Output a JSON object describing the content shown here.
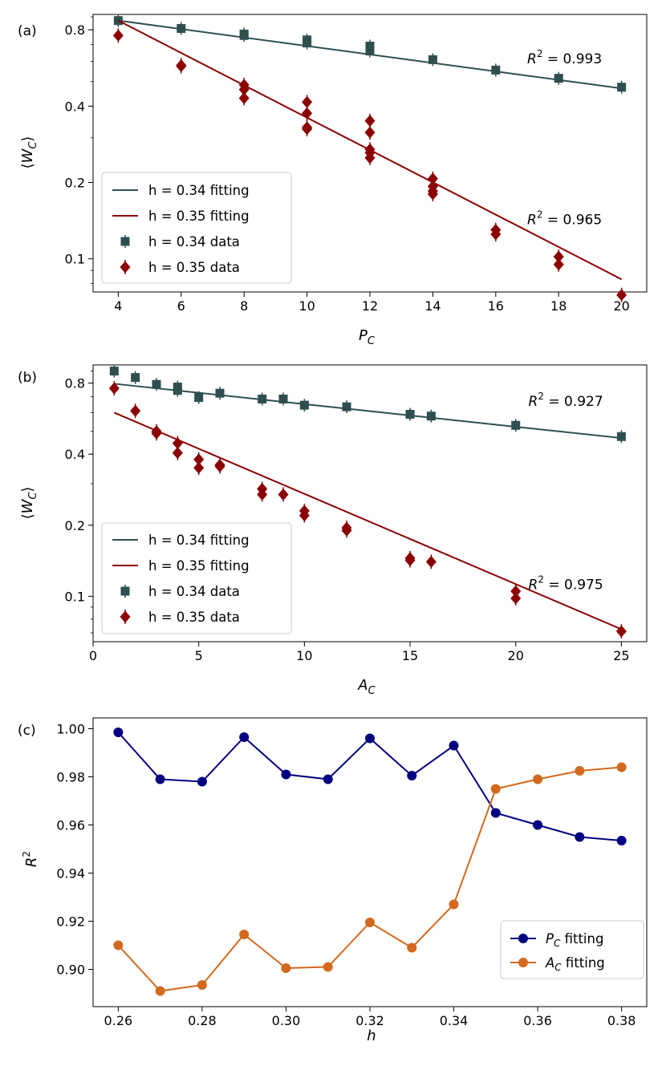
{
  "colors": {
    "h034": "#2f4f4f",
    "h035": "#8b0000",
    "pc_fit": "#000080",
    "ac_fit": "#d2691e"
  },
  "chart_data": [
    {
      "type": "scatter",
      "panel": "(a)",
      "yscale": "log",
      "xlabel_base": "P",
      "xlabel_sub": "C",
      "ylabel_inner": "W",
      "ylabel_sub": "C",
      "xlim": [
        3.2,
        20.8
      ],
      "ylim": [
        0.074,
        0.92
      ],
      "xticks": [
        4,
        6,
        8,
        10,
        12,
        14,
        16,
        18,
        20
      ],
      "yticks": [
        0.1,
        0.2,
        0.4,
        0.8
      ],
      "ytick_labels": [
        "0.1",
        "0.2",
        "0.4",
        "0.8"
      ],
      "legend_position": "lower-left",
      "annotations": [
        {
          "text": "R² = 0.993",
          "series": "h = 0.34",
          "x": 17,
          "y": 0.59
        },
        {
          "text": "R² = 0.965",
          "series": "h = 0.35",
          "x": 17,
          "y": 0.137
        }
      ],
      "series": [
        {
          "name": "h = 0.34",
          "fit_label": "h = 0.34 fitting",
          "data_label": "h = 0.34 data",
          "marker": "square",
          "fit": {
            "x": [
              4,
              20
            ],
            "y": [
              0.87,
              0.47
            ]
          },
          "x": [
            4,
            6,
            8,
            8,
            10,
            10,
            12,
            12,
            14,
            16,
            18,
            20
          ],
          "y": [
            0.87,
            0.81,
            0.77,
            0.76,
            0.73,
            0.71,
            0.69,
            0.66,
            0.61,
            0.555,
            0.515,
            0.475
          ]
        },
        {
          "name": "h = 0.35",
          "fit_label": "h = 0.35 fitting",
          "data_label": "h = 0.35 data",
          "marker": "diamond",
          "fit": {
            "x": [
              4,
              20
            ],
            "y": [
              0.87,
              0.083
            ]
          },
          "x": [
            4,
            6,
            6,
            8,
            8,
            8,
            10,
            10,
            10,
            10,
            12,
            12,
            12,
            12,
            12,
            14,
            14,
            14,
            14,
            16,
            16,
            18,
            18,
            20
          ],
          "y": [
            0.76,
            0.58,
            0.575,
            0.485,
            0.465,
            0.43,
            0.415,
            0.375,
            0.33,
            0.325,
            0.35,
            0.315,
            0.27,
            0.262,
            0.25,
            0.207,
            0.193,
            0.185,
            0.18,
            0.13,
            0.125,
            0.102,
            0.095,
            0.072
          ]
        }
      ]
    },
    {
      "type": "scatter",
      "panel": "(b)",
      "yscale": "log",
      "xlabel_base": "A",
      "xlabel_sub": "C",
      "ylabel_inner": "W",
      "ylabel_sub": "C",
      "xlim": [
        0,
        26.2
      ],
      "ylim": [
        0.0642,
        0.955
      ],
      "xticks": [
        0,
        5,
        10,
        15,
        20,
        25
      ],
      "yticks": [
        0.1,
        0.2,
        0.4,
        0.8
      ],
      "ytick_labels": [
        "0.1",
        "0.2",
        "0.4",
        "0.8"
      ],
      "legend_position": "lower-left",
      "annotations": [
        {
          "text": "R² = 0.927",
          "series": "h = 0.34",
          "x": 20.6,
          "y": 0.64
        },
        {
          "text": "R² = 0.975",
          "series": "h = 0.35",
          "x": 20.6,
          "y": 0.107
        }
      ],
      "series": [
        {
          "name": "h = 0.34",
          "fit_label": "h = 0.34 fitting",
          "data_label": "h = 0.34 data",
          "marker": "square",
          "fit": {
            "x": [
              1,
              25
            ],
            "y": [
              0.795,
              0.468
            ]
          },
          "x": [
            1,
            2,
            3,
            4,
            4,
            5,
            6,
            8,
            9,
            10,
            12,
            15,
            16,
            20,
            25
          ],
          "y": [
            0.9,
            0.845,
            0.79,
            0.77,
            0.745,
            0.695,
            0.725,
            0.685,
            0.685,
            0.645,
            0.635,
            0.59,
            0.58,
            0.53,
            0.475
          ]
        },
        {
          "name": "h = 0.35",
          "fit_label": "h = 0.35 fitting",
          "data_label": "h = 0.35 data",
          "marker": "diamond",
          "fit": {
            "x": [
              1,
              25
            ],
            "y": [
              0.6,
              0.0725
            ]
          },
          "x": [
            1,
            2,
            3,
            3,
            4,
            4,
            5,
            5,
            6,
            6,
            8,
            8,
            9,
            10,
            10,
            12,
            12,
            15,
            15,
            16,
            20,
            20,
            25
          ],
          "y": [
            0.76,
            0.61,
            0.5,
            0.49,
            0.445,
            0.405,
            0.38,
            0.35,
            0.36,
            0.355,
            0.285,
            0.27,
            0.27,
            0.23,
            0.22,
            0.195,
            0.19,
            0.145,
            0.142,
            0.14,
            0.105,
            0.098,
            0.071
          ]
        }
      ]
    },
    {
      "type": "line",
      "panel": "(c)",
      "yscale": "linear",
      "xlabel_base": "h",
      "ylabel_base": "R",
      "ylabel_sup": "2",
      "xlim": [
        0.254,
        0.386
      ],
      "ylim": [
        0.8845,
        1.0045
      ],
      "xticks": [
        0.26,
        0.28,
        0.3,
        0.32,
        0.34,
        0.36,
        0.38
      ],
      "xtick_labels": [
        "0.26",
        "0.28",
        "0.30",
        "0.32",
        "0.34",
        "0.36",
        "0.38"
      ],
      "yticks": [
        0.9,
        0.92,
        0.94,
        0.96,
        0.98,
        1.0
      ],
      "ytick_labels": [
        "0.90",
        "0.92",
        "0.94",
        "0.96",
        "0.98",
        "1.00"
      ],
      "legend_position": "lower-right",
      "series": [
        {
          "name": "P_C fitting",
          "label_base": "P",
          "label_sub": "C",
          "label_tail": " fitting",
          "x": [
            0.26,
            0.27,
            0.28,
            0.29,
            0.3,
            0.31,
            0.32,
            0.33,
            0.34,
            0.35,
            0.36,
            0.37,
            0.38
          ],
          "y": [
            0.9985,
            0.979,
            0.978,
            0.9965,
            0.981,
            0.979,
            0.996,
            0.9805,
            0.993,
            0.965,
            0.96,
            0.955,
            0.9535
          ]
        },
        {
          "name": "A_C fitting",
          "label_base": "A",
          "label_sub": "C",
          "label_tail": " fitting",
          "x": [
            0.26,
            0.27,
            0.28,
            0.29,
            0.3,
            0.31,
            0.32,
            0.33,
            0.34,
            0.35,
            0.36,
            0.37,
            0.38
          ],
          "y": [
            0.91,
            0.891,
            0.8935,
            0.9145,
            0.9005,
            0.901,
            0.9195,
            0.909,
            0.927,
            0.975,
            0.979,
            0.9825,
            0.984
          ]
        }
      ]
    }
  ]
}
